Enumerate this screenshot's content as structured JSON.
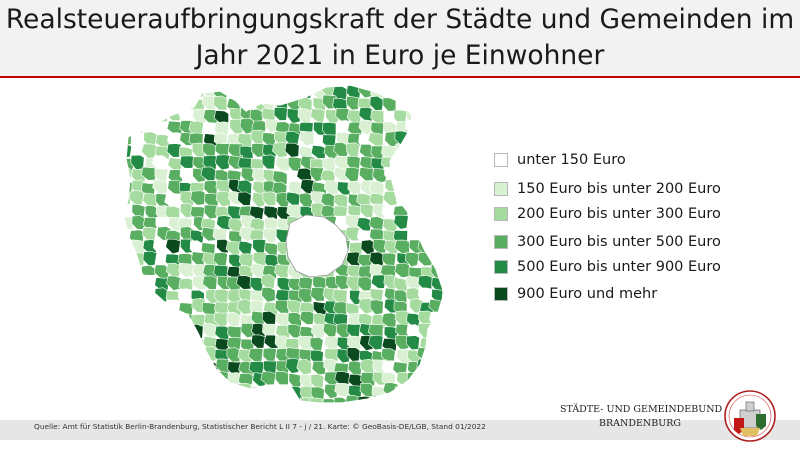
{
  "title": {
    "line1": "Realsteueraufbringungskraft der Städte und Gemeinden im",
    "line2": "Jahr 2021 in Euro je Einwohner"
  },
  "legend": [
    {
      "label": "unter 150 Euro",
      "color": "#ffffff"
    },
    {
      "label": "150 Euro bis unter 200 Euro",
      "color": "#d9f0d3"
    },
    {
      "label": "200 Euro bis unter 300 Euro",
      "color": "#a6dba0"
    },
    {
      "label": "300 Euro bis unter 500 Euro",
      "color": "#5aae61"
    },
    {
      "label": "500 Euro bis unter 900 Euro",
      "color": "#238b45"
    },
    {
      "label": "900 Euro und mehr",
      "color": "#0b4a1f"
    }
  ],
  "footer": {
    "source": "Quelle: Amt für Statistik Berlin-Brandenburg, Statistischer Bericht L II 7 - j / 21. Karte: © GeoBasis-DE/LGB, Stand 01/2022"
  },
  "organization": {
    "line1": "STÄDTE- UND GEMEINDEBUND",
    "line2": "BRANDENBURG",
    "logo_icon": "coat-of-arms-icon"
  }
}
